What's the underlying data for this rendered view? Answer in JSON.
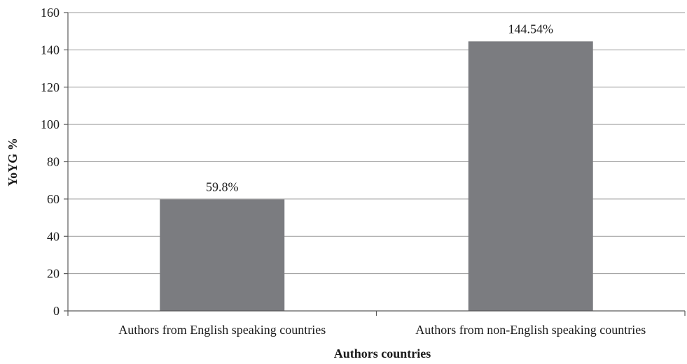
{
  "chart_data": {
    "type": "bar",
    "categories": [
      "Authors from English speaking countries",
      "Authors from non-English speaking countries"
    ],
    "values": [
      59.8,
      144.54
    ],
    "data_labels": [
      "59.8%",
      "144.54%"
    ],
    "title": "",
    "xlabel": "Authors countries",
    "ylabel": "YoYG %",
    "ylim": [
      0,
      160
    ],
    "yticks": [
      0,
      20,
      40,
      60,
      80,
      100,
      120,
      140,
      160
    ],
    "grid": "horizontal",
    "legend": "none",
    "bar_color": "#7b7c80"
  }
}
